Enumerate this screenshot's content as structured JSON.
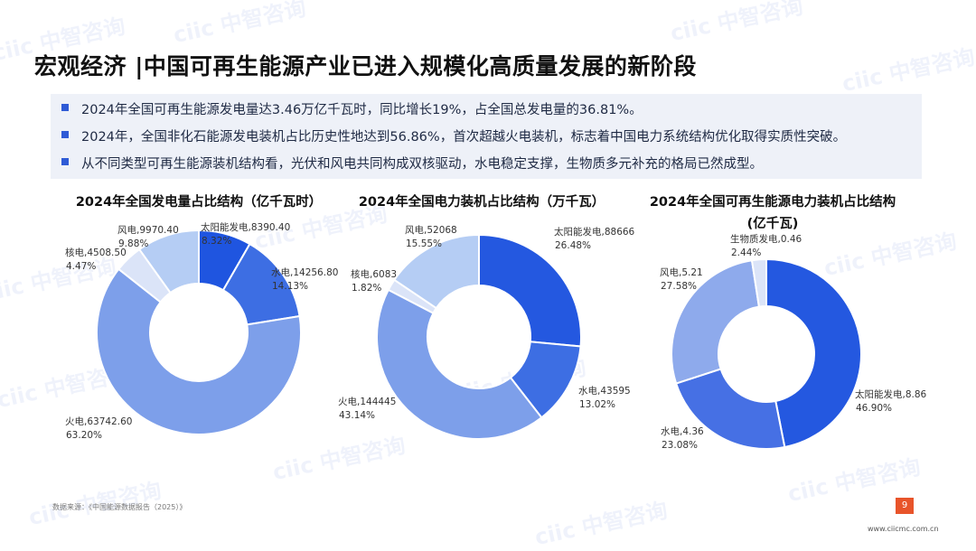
{
  "title": "宏观经济 |中国可再生能源产业已进入规模化高质量发展的新阶段",
  "bullets": [
    "2024年全国可再生能源发电量达3.46万亿千瓦时，同比增长19%，占全国总发电量的36.81%。",
    "2024年，全国非化石能源发电装机占比历史性地达到56.86%，首次超越火电装机，标志着中国电力系统结构优化取得实质性突破。",
    "从不同类型可再生能源装机结构看，光伏和风电共同构成双核驱动，水电稳定支撑，生物质多元补充的格局已然成型。"
  ],
  "chart_titles": [
    "2024年全国发电量占比结构（亿千瓦时）",
    "2024年全国电力装机占比结构（万千瓦）",
    "2024年全国可再生能源电力装机占比结构",
    "(亿千瓦)"
  ],
  "chart_data": [
    {
      "type": "pie",
      "title": "2024年全国发电量占比结构（亿千瓦时）",
      "slices": [
        {
          "name": "太阳能发电",
          "value": 8390.4,
          "percent": "8.32%",
          "value_text": "8390.40",
          "color": "#1f55e0"
        },
        {
          "name": "水电",
          "value": 14256.8,
          "percent": "14.13%",
          "value_text": "14256.80",
          "color": "#3d6ee3"
        },
        {
          "name": "火电",
          "value": 63742.6,
          "percent": "63.20%",
          "value_text": "63742.60",
          "color": "#7d9fea"
        },
        {
          "name": "核电",
          "value": 4508.5,
          "percent": "4.47%",
          "value_text": "4508.50",
          "color": "#dbe4f8"
        },
        {
          "name": "风电",
          "value": 9970.4,
          "percent": "9.88%",
          "value_text": "9970.40",
          "color": "#b5cdf4"
        }
      ]
    },
    {
      "type": "pie",
      "title": "2024年全国电力装机占比结构（万千瓦）",
      "slices": [
        {
          "name": "太阳能发电",
          "value": 88666,
          "percent": "26.48%",
          "value_text": "88666",
          "color": "#2458e0"
        },
        {
          "name": "水电",
          "value": 43595,
          "percent": "13.02%",
          "value_text": "43595",
          "color": "#3d6ee3"
        },
        {
          "name": "火电",
          "value": 144445,
          "percent": "43.14%",
          "value_text": "144445",
          "color": "#7d9fea"
        },
        {
          "name": "核电",
          "value": 6083,
          "percent": "1.82%",
          "value_text": "6083",
          "color": "#dbe4f8"
        },
        {
          "name": "风电",
          "value": 52068,
          "percent": "15.55%",
          "value_text": "52068",
          "color": "#b5cdf4"
        }
      ]
    },
    {
      "type": "pie",
      "title": "2024年全国可再生能源电力装机占比结构 (亿千瓦)",
      "slices": [
        {
          "name": "太阳能发电",
          "value": 8.86,
          "percent": "46.90%",
          "value_text": "8.86",
          "color": "#2458e0"
        },
        {
          "name": "水电",
          "value": 4.36,
          "percent": "23.08%",
          "value_text": "4.36",
          "color": "#4670e4"
        },
        {
          "name": "风电",
          "value": 5.21,
          "percent": "27.58%",
          "value_text": "5.21",
          "color": "#8eaaec"
        },
        {
          "name": "生物质发电",
          "value": 0.46,
          "percent": "2.44%",
          "value_text": "0.46",
          "color": "#dbe4f8"
        }
      ]
    }
  ],
  "source_note": "数据来源：《中国能源数据报告（2025）》",
  "page_number": "9",
  "footer_url": "www.ciicmc.com.cn",
  "watermark": "ciic 中智咨询"
}
